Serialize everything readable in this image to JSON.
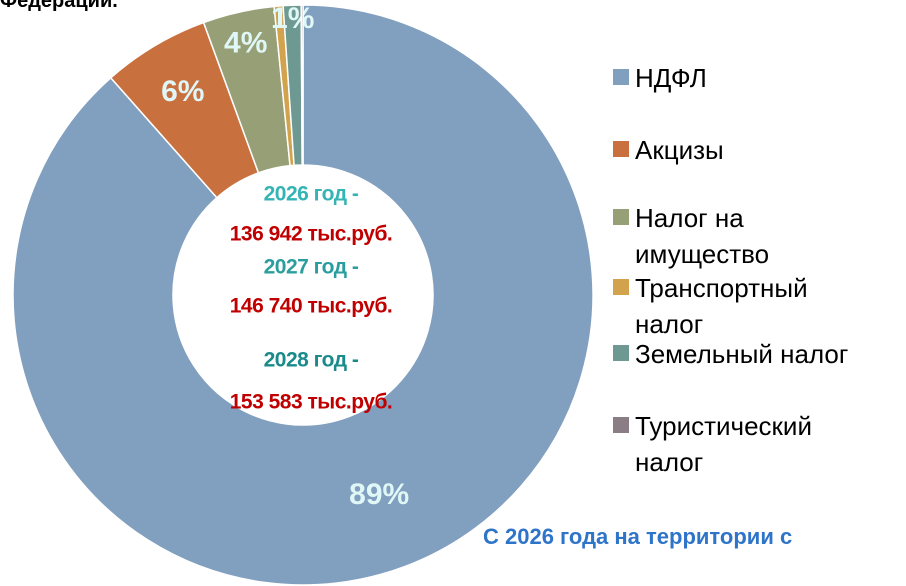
{
  "chart_data": {
    "type": "donut",
    "title": "Федерации.",
    "categories": [
      "НДФЛ",
      "Акцизы",
      "Налог на имущество",
      "Транспортный налог",
      "Земельный налог",
      "Туристический налог"
    ],
    "values": [
      89,
      6,
      4,
      0.5,
      1,
      0.1
    ],
    "value_labels": [
      "89%",
      "6%",
      "4%",
      null,
      "1%",
      null
    ],
    "colors": [
      "#819fbe",
      "#c8703e",
      "#979f76",
      "#d2a24c",
      "#6e9993",
      "#8a7d83"
    ],
    "center_text": [
      {
        "year": "2026 год -",
        "amount": "136 942 тыс.руб."
      },
      {
        "year": "2027 год -",
        "amount": "146 740 тыс.руб."
      },
      {
        "year": "2028 год -",
        "amount": "153 583 тыс.руб."
      }
    ],
    "annotation": "С 2026 года на территории с",
    "legend": "right"
  }
}
